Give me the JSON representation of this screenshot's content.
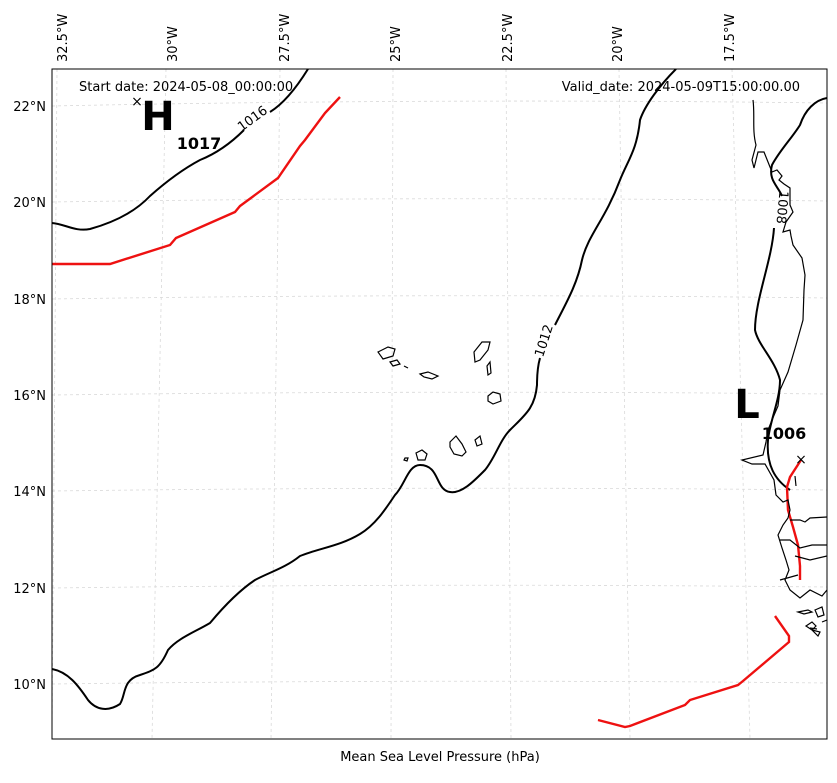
{
  "map": {
    "start_date": "Start date: 2024-05-08_00:00:00",
    "valid_date": "Valid_date: 2024-05-09T15:00:00.00",
    "bottom_label": "Mean Sea Level Pressure (hPa)",
    "lon_labels": [
      "32.5°W",
      "30°W",
      "27.5°W",
      "25°W",
      "22.5°W",
      "20°W",
      "17.5°W"
    ],
    "lat_labels": [
      "22°N",
      "20°N",
      "18°N",
      "16°N",
      "14°N",
      "12°N",
      "10°N"
    ],
    "contour_labels": {
      "c1016": "1016",
      "c1012": "1012",
      "c1008": "1008"
    },
    "centers": {
      "high": {
        "symbol": "H",
        "value": "1017"
      },
      "low": {
        "symbol": "L",
        "value": "1006"
      }
    },
    "colors": {
      "isobar": "#000000",
      "track": "#ee1111",
      "grid": "#cccccc",
      "coast": "#000000"
    }
  }
}
